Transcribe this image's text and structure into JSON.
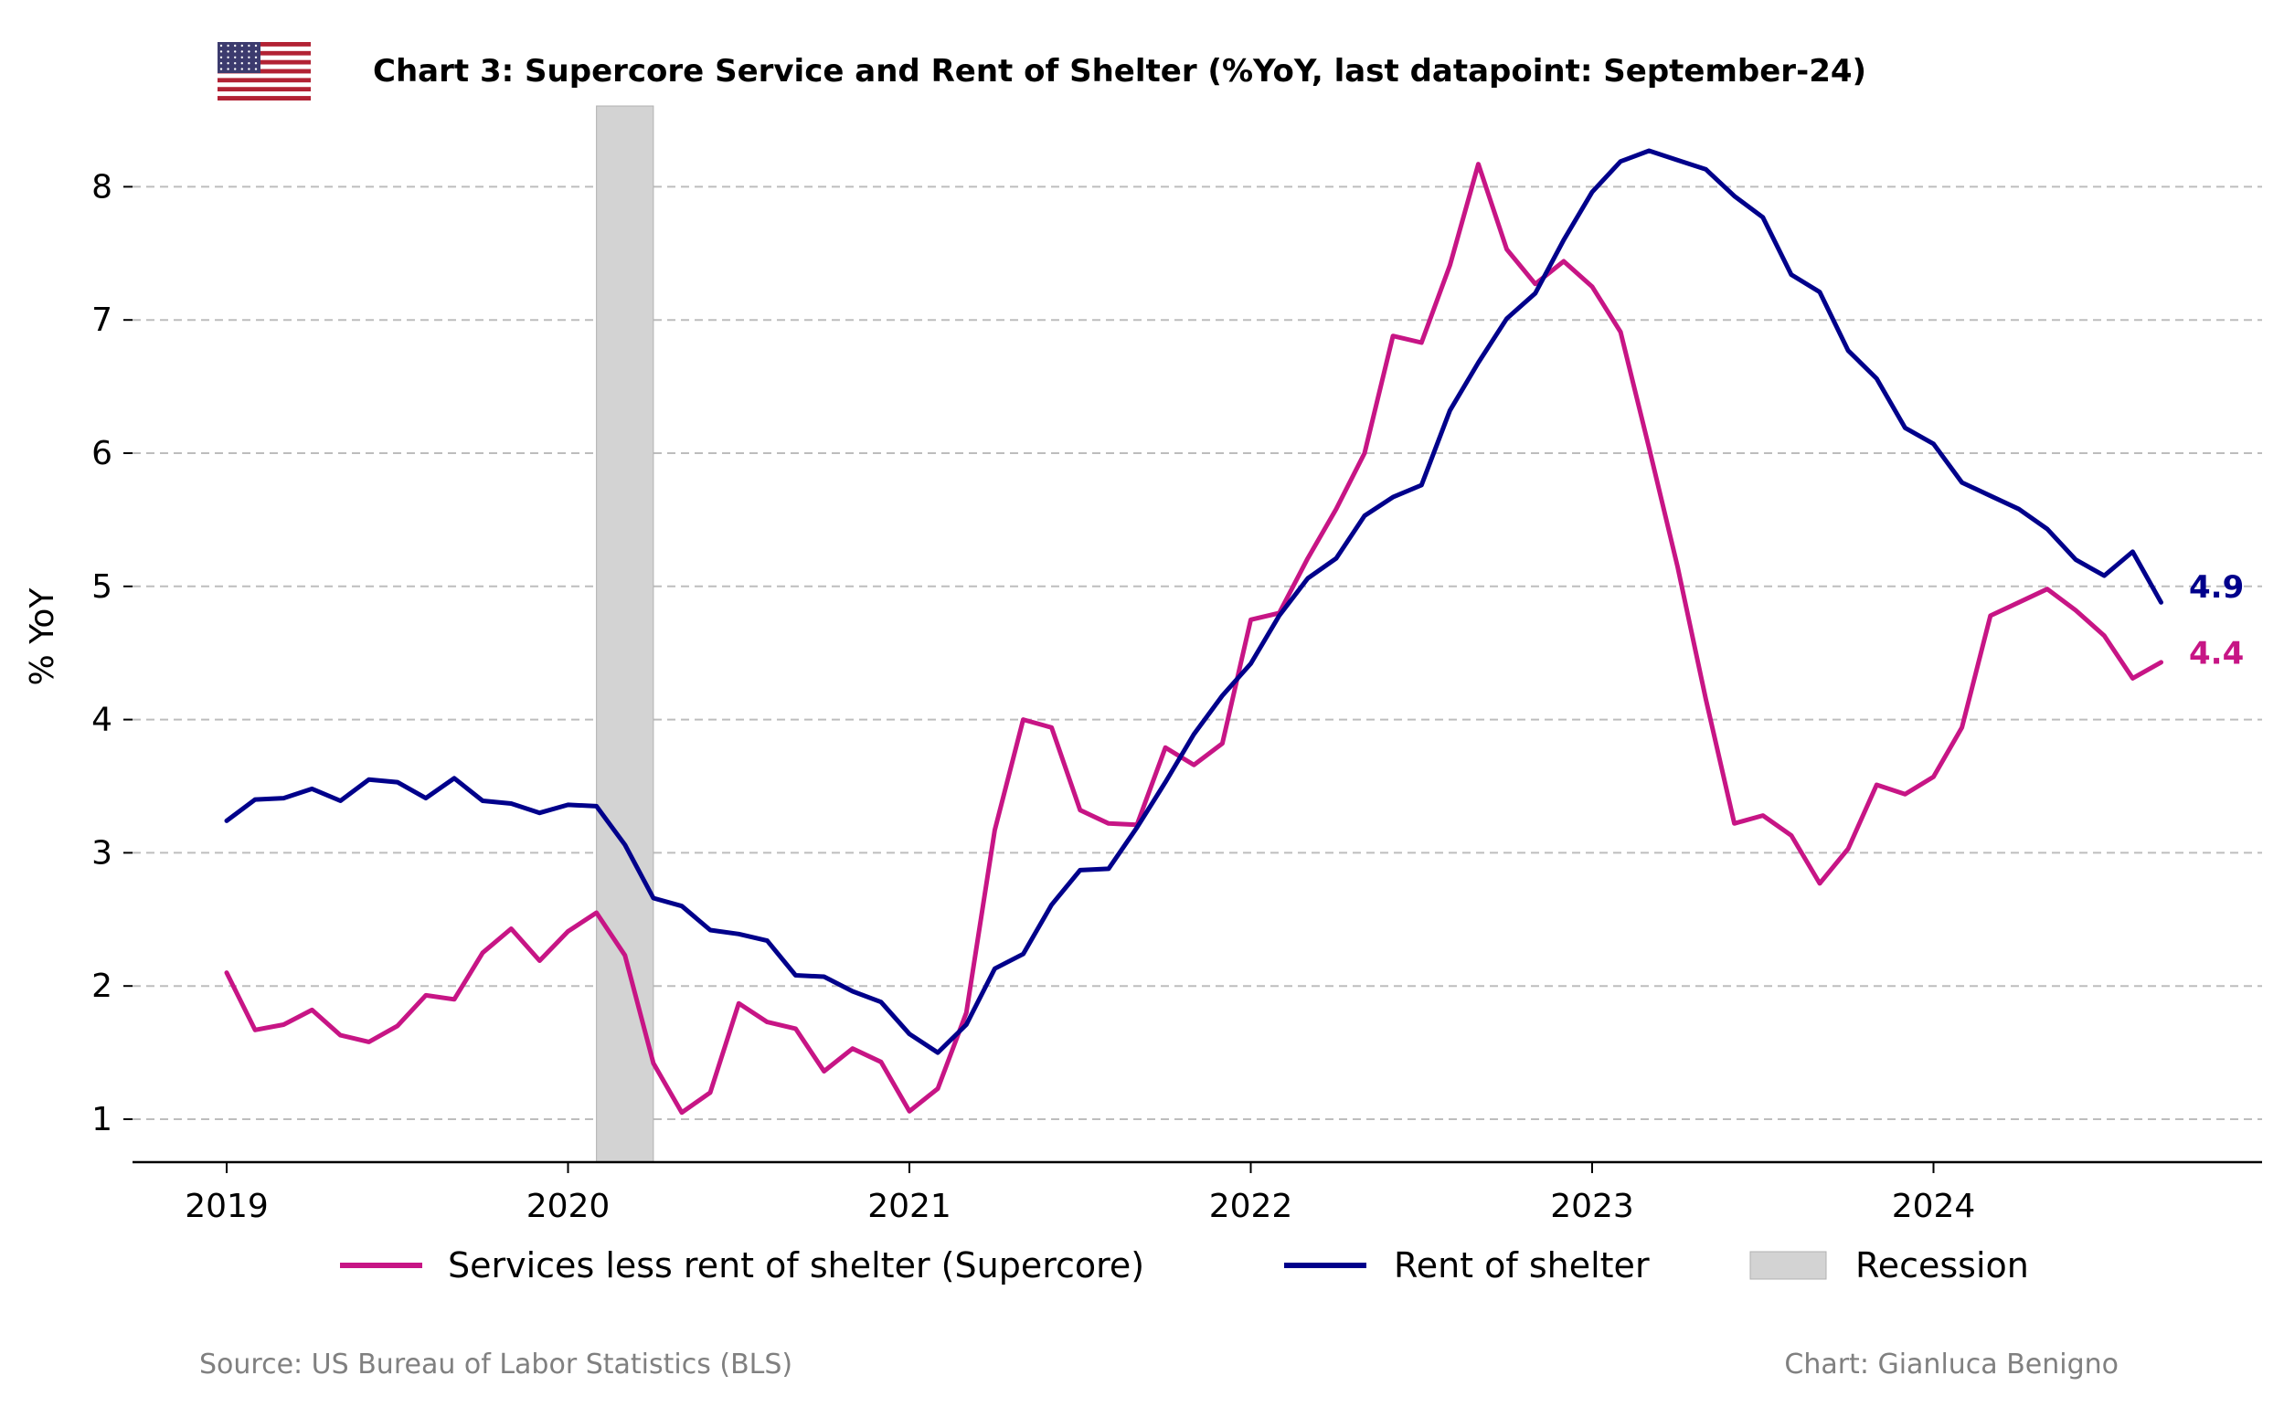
{
  "chart_data": {
    "type": "line",
    "title": "Chart 3: Supercore Service and Rent of Shelter (%YoY, last datapoint: September-24)",
    "ylabel": "% YoY",
    "xlabel": "",
    "ylim": [
      0.67,
      8.6
    ],
    "yticks": [
      1,
      2,
      3,
      4,
      5,
      6,
      7,
      8
    ],
    "xticks": [
      "2019",
      "2020",
      "2021",
      "2022",
      "2023",
      "2024"
    ],
    "grid": "horizontal dashed",
    "legend_position": "bottom",
    "x_start": "2019-01",
    "x_end": "2024-09",
    "series": [
      {
        "name": "Services less rent of shelter (Supercore)",
        "color": "#C71585",
        "end_label": "4.4",
        "values": [
          2.1,
          1.67,
          1.71,
          1.82,
          1.63,
          1.58,
          1.7,
          1.93,
          1.9,
          2.25,
          2.43,
          2.19,
          2.41,
          2.55,
          2.23,
          1.42,
          1.05,
          1.2,
          1.87,
          1.73,
          1.68,
          1.36,
          1.53,
          1.43,
          1.06,
          1.23,
          1.8,
          3.17,
          4.0,
          3.94,
          3.32,
          3.22,
          3.21,
          3.79,
          3.66,
          3.82,
          4.75,
          4.8,
          5.21,
          5.58,
          6.0,
          6.88,
          6.83,
          7.41,
          8.17,
          7.53,
          7.27,
          7.44,
          7.25,
          6.91,
          6.04,
          5.15,
          4.15,
          3.22,
          3.28,
          3.13,
          2.77,
          3.03,
          3.51,
          3.44,
          3.57,
          3.94,
          4.78,
          4.88,
          4.98,
          4.82,
          4.63,
          4.31,
          4.43
        ]
      },
      {
        "name": "Rent of shelter",
        "color": "#00008B",
        "end_label": "4.9",
        "values": [
          3.24,
          3.4,
          3.41,
          3.48,
          3.39,
          3.55,
          3.53,
          3.41,
          3.56,
          3.39,
          3.37,
          3.3,
          3.36,
          3.35,
          3.06,
          2.66,
          2.6,
          2.42,
          2.39,
          2.34,
          2.08,
          2.07,
          1.96,
          1.88,
          1.64,
          1.5,
          1.71,
          2.13,
          2.24,
          2.61,
          2.87,
          2.88,
          3.19,
          3.53,
          3.89,
          4.18,
          4.42,
          4.78,
          5.06,
          5.21,
          5.53,
          5.67,
          5.76,
          6.32,
          6.68,
          7.01,
          7.2,
          7.6,
          7.96,
          8.19,
          8.27,
          8.2,
          8.13,
          7.93,
          7.77,
          7.34,
          7.21,
          6.77,
          6.56,
          6.19,
          6.07,
          5.78,
          5.68,
          5.58,
          5.43,
          5.2,
          5.08,
          5.26,
          4.88
        ]
      }
    ],
    "recession": {
      "label": "Recession",
      "start": "2020-02",
      "end": "2020-04",
      "color": "#D3D3D3"
    },
    "source": "Source: US Bureau of Labor Statistics (BLS)",
    "credit": "Chart: Gianluca Benigno",
    "flag_icon": "us-flag-icon"
  }
}
